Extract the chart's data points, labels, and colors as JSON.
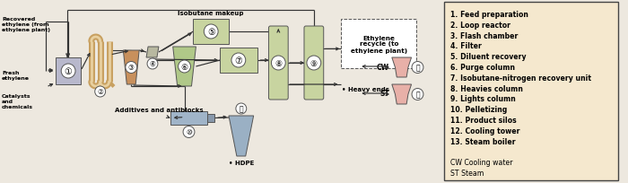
{
  "fig_bg": "#ede8df",
  "legend_bg": "#f5e8ce",
  "legend_border": "#444444",
  "line_color": "#333333",
  "box_gray": "#b8b8cc",
  "box_green": "#c8d4a0",
  "box_tan": "#cc9966",
  "box_blue": "#a0b4c8",
  "box_pink": "#e8b0a8",
  "loop_fill": "#c8a060",
  "loop_inner": "#e8d0a0",
  "legend_items": [
    "1. Feed preparation",
    "2. Loop reactor",
    "3. Flash chamber",
    "4. Filter",
    "5. Diluent recovery",
    "6. Purge column",
    "7. Isobutane-nitrogen recovery unit",
    "8. Heavies column",
    "9. Lights column",
    "10. Pelletizing",
    "11. Product silos",
    "12. Cooling tower",
    "13. Steam boiler",
    "",
    "CW Cooling water",
    "ST Steam"
  ]
}
